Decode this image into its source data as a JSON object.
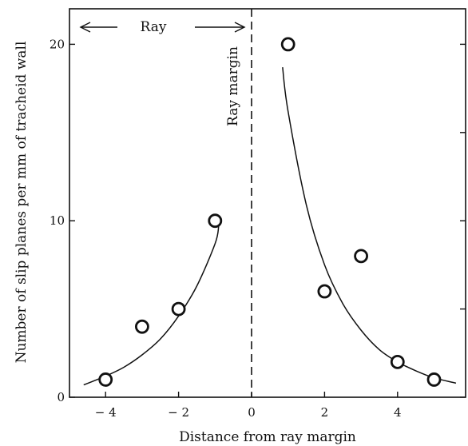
{
  "chart_data": {
    "type": "scatter",
    "xlabel": "Distance from ray margin",
    "ylabel": "Number of slip planes per mm of tracheid wall",
    "xlim": [
      -5,
      5.6
    ],
    "ylim": [
      0,
      22
    ],
    "x_ticks": [
      {
        "value": -4,
        "label": "− 4"
      },
      {
        "value": -2,
        "label": "− 2"
      },
      {
        "value": 0,
        "label": "0"
      },
      {
        "value": 2,
        "label": "2"
      },
      {
        "value": 4,
        "label": "4"
      }
    ],
    "y_ticks": [
      {
        "value": 0,
        "label": "0"
      },
      {
        "value": 10,
        "label": "10"
      },
      {
        "value": 20,
        "label": "20"
      }
    ],
    "y_minor_ticks_right": [
      5,
      15
    ],
    "points": [
      {
        "x": -4,
        "y": 1
      },
      {
        "x": -3,
        "y": 4
      },
      {
        "x": -2,
        "y": 5
      },
      {
        "x": -1,
        "y": 10
      },
      {
        "x": 1,
        "y": 20
      },
      {
        "x": 2,
        "y": 6
      },
      {
        "x": 3,
        "y": 8
      },
      {
        "x": 4,
        "y": 2
      },
      {
        "x": 5,
        "y": 1
      }
    ],
    "fit_curves": [
      {
        "x": [
          -4.6,
          -4.0,
          -3.5,
          -3.0,
          -2.5,
          -2.0,
          -1.5,
          -1.0,
          -0.9
        ],
        "y": [
          0.7,
          1.2,
          1.7,
          2.4,
          3.3,
          4.6,
          6.3,
          8.7,
          9.7
        ]
      },
      {
        "x": [
          0.85,
          1.0,
          1.5,
          2.0,
          2.5,
          3.0,
          3.5,
          4.0,
          4.5,
          5.0,
          5.6
        ],
        "y": [
          18.7,
          16.2,
          10.9,
          7.5,
          5.3,
          3.8,
          2.7,
          2.0,
          1.5,
          1.1,
          0.8
        ]
      }
    ],
    "ray_margin_x": 0,
    "annotations": {
      "ray_label": "Ray",
      "ray_margin_label": "Ray margin"
    }
  }
}
